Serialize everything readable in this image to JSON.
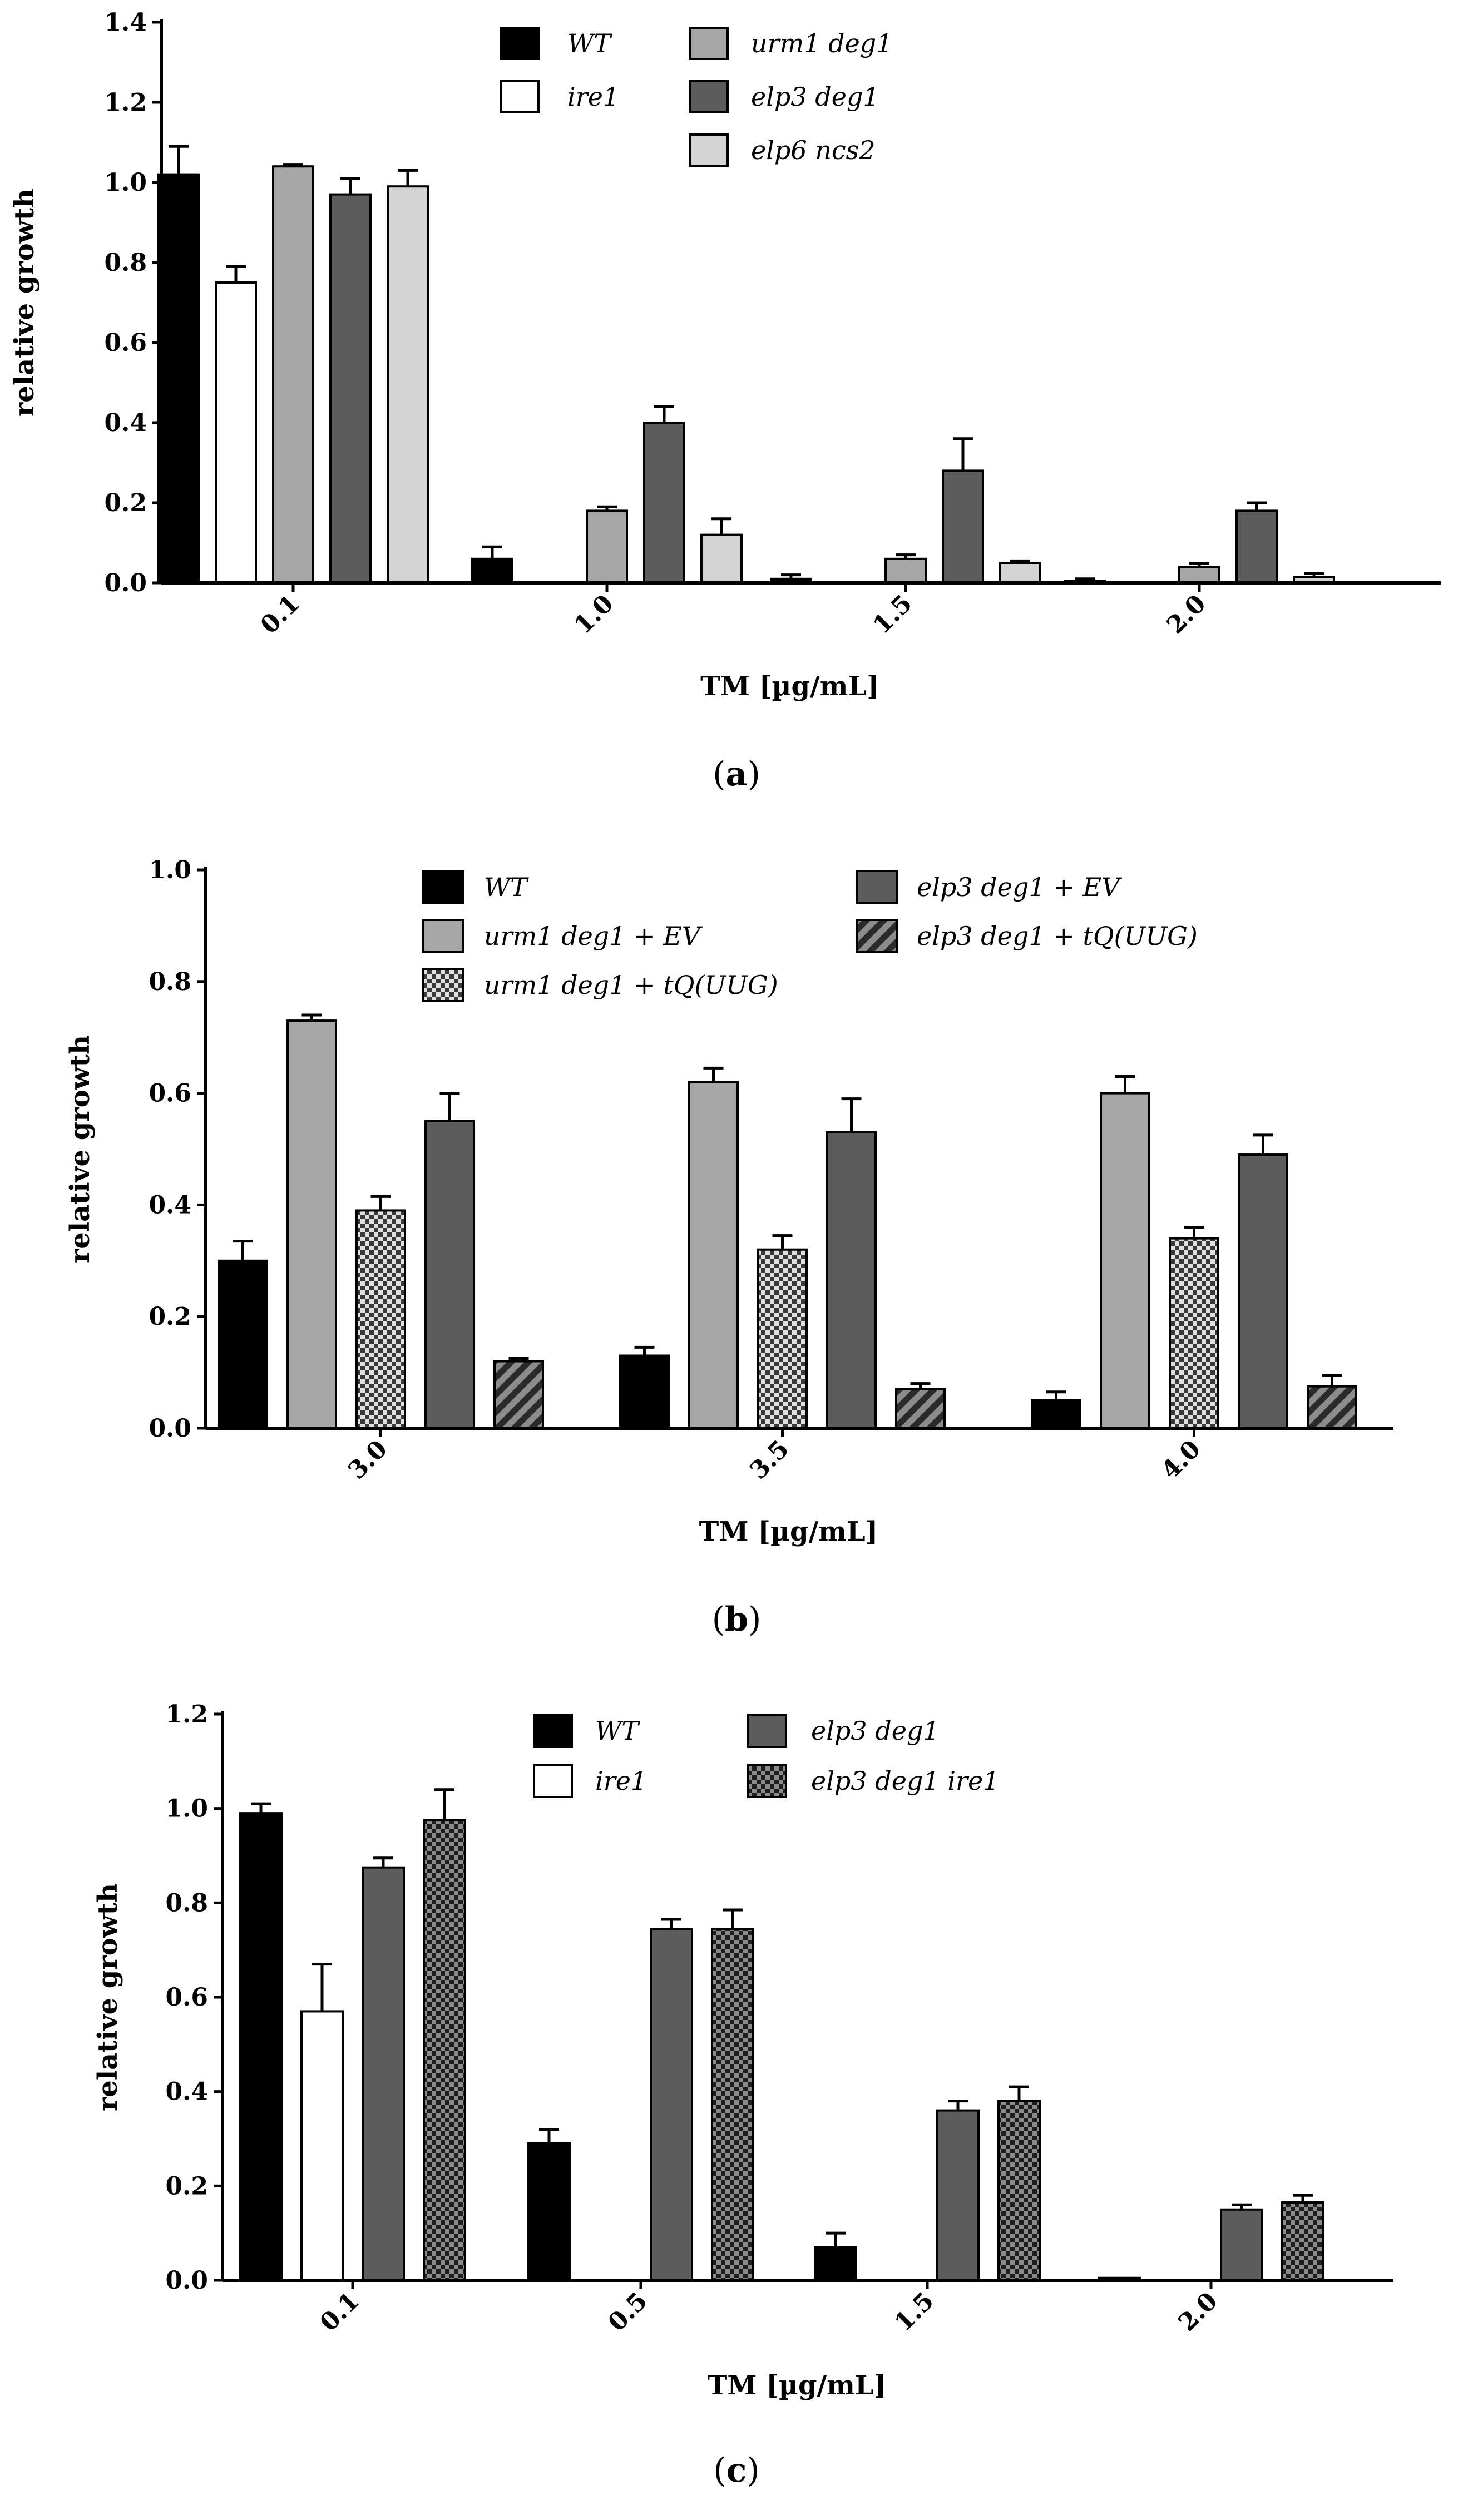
{
  "chart_data": [
    {
      "type": "bar",
      "caption": "(a)",
      "caption_letter": "a",
      "ylabel": "relative growth",
      "xlabel": "TM [µg/mL]",
      "ylim": [
        0,
        1.4
      ],
      "yticks": [
        "0.0",
        "0.2",
        "0.4",
        "0.6",
        "0.8",
        "1.0",
        "1.2",
        "1.4"
      ],
      "categories": [
        "0.1",
        "1.0",
        "1.5",
        "2.0"
      ],
      "series": [
        {
          "name": "WT",
          "fill": "#000000",
          "pattern": "solid",
          "values": [
            1.02,
            0.06,
            0.01,
            0.005
          ],
          "errors": [
            0.07,
            0.03,
            0.01,
            0.005
          ]
        },
        {
          "name": "ire1",
          "fill": "#ffffff",
          "pattern": "solid",
          "values": [
            0.75,
            0.0,
            0.0,
            0.0
          ],
          "errors": [
            0.04,
            0.0,
            0.0,
            0.0
          ]
        },
        {
          "name": "urm1 deg1",
          "fill": "#a6a6a6",
          "pattern": "solid",
          "values": [
            1.04,
            0.18,
            0.06,
            0.04
          ],
          "errors": [
            0.005,
            0.01,
            0.01,
            0.008
          ]
        },
        {
          "name": "elp3 deg1",
          "fill": "#5c5c5c",
          "pattern": "solid",
          "values": [
            0.97,
            0.4,
            0.28,
            0.18
          ],
          "errors": [
            0.04,
            0.04,
            0.08,
            0.02
          ]
        },
        {
          "name": "elp6 ncs2",
          "fill": "#d4d4d4",
          "pattern": "solid",
          "values": [
            0.99,
            0.12,
            0.05,
            0.015
          ],
          "errors": [
            0.04,
            0.04,
            0.005,
            0.008
          ]
        }
      ],
      "legend_columns": [
        [
          0,
          1
        ],
        [
          2,
          3,
          4
        ]
      ]
    },
    {
      "type": "bar",
      "caption": "(b)",
      "caption_letter": "b",
      "ylabel": "relative growth",
      "xlabel": "TM [µg/mL]",
      "ylim": [
        0,
        1.0
      ],
      "yticks": [
        "0.0",
        "0.2",
        "0.4",
        "0.6",
        "0.8",
        "1.0"
      ],
      "categories": [
        "3.0",
        "3.5",
        "4.0"
      ],
      "series": [
        {
          "name": "WT",
          "fill": "#000000",
          "pattern": "solid",
          "values": [
            0.3,
            0.13,
            0.05
          ],
          "errors": [
            0.035,
            0.015,
            0.015
          ]
        },
        {
          "name": "urm1 deg1 + EV",
          "fill": "#a6a6a6",
          "pattern": "solid",
          "values": [
            0.73,
            0.62,
            0.6
          ],
          "errors": [
            0.01,
            0.025,
            0.03
          ]
        },
        {
          "name": "urm1 deg1 + tQ(UUG)",
          "fill": "#a6a6a6",
          "pattern": "checker",
          "values": [
            0.39,
            0.32,
            0.34
          ],
          "errors": [
            0.025,
            0.025,
            0.02
          ]
        },
        {
          "name": "elp3 deg1 + EV",
          "fill": "#5c5c5c",
          "pattern": "solid",
          "values": [
            0.55,
            0.53,
            0.49
          ],
          "errors": [
            0.05,
            0.06,
            0.035
          ]
        },
        {
          "name": "elp3 deg1 + tQ(UUG)",
          "fill": "#5c5c5c",
          "pattern": "hatch",
          "values": [
            0.12,
            0.07,
            0.075
          ],
          "errors": [
            0.005,
            0.01,
            0.02
          ]
        }
      ],
      "legend_columns": [
        [
          0,
          1,
          2
        ],
        [
          3,
          4
        ]
      ]
    },
    {
      "type": "bar",
      "caption": "(c)",
      "caption_letter": "c",
      "ylabel": "relative growth",
      "xlabel": "TM [µg/mL]",
      "ylim": [
        0,
        1.2
      ],
      "yticks": [
        "0.0",
        "0.2",
        "0.4",
        "0.6",
        "0.8",
        "1.0",
        "1.2"
      ],
      "categories": [
        "0.1",
        "0.5",
        "1.5",
        "2.0"
      ],
      "series": [
        {
          "name": "WT",
          "fill": "#000000",
          "pattern": "solid",
          "values": [
            0.99,
            0.29,
            0.07,
            0.005
          ],
          "errors": [
            0.02,
            0.03,
            0.03,
            0.0
          ]
        },
        {
          "name": "ire1",
          "fill": "#ffffff",
          "pattern": "solid",
          "values": [
            0.57,
            0.0,
            0.0,
            0.0
          ],
          "errors": [
            0.1,
            0.0,
            0.0,
            0.0
          ]
        },
        {
          "name": "elp3 deg1",
          "fill": "#5c5c5c",
          "pattern": "solid",
          "values": [
            0.875,
            0.745,
            0.36,
            0.15
          ],
          "errors": [
            0.02,
            0.02,
            0.02,
            0.01
          ]
        },
        {
          "name": "elp3 deg1 ire1",
          "fill": "#5c5c5c",
          "pattern": "checker",
          "values": [
            0.975,
            0.745,
            0.38,
            0.165
          ],
          "errors": [
            0.065,
            0.04,
            0.03,
            0.015
          ]
        }
      ],
      "legend_columns": [
        [
          0,
          1
        ],
        [
          2,
          3
        ]
      ]
    }
  ]
}
